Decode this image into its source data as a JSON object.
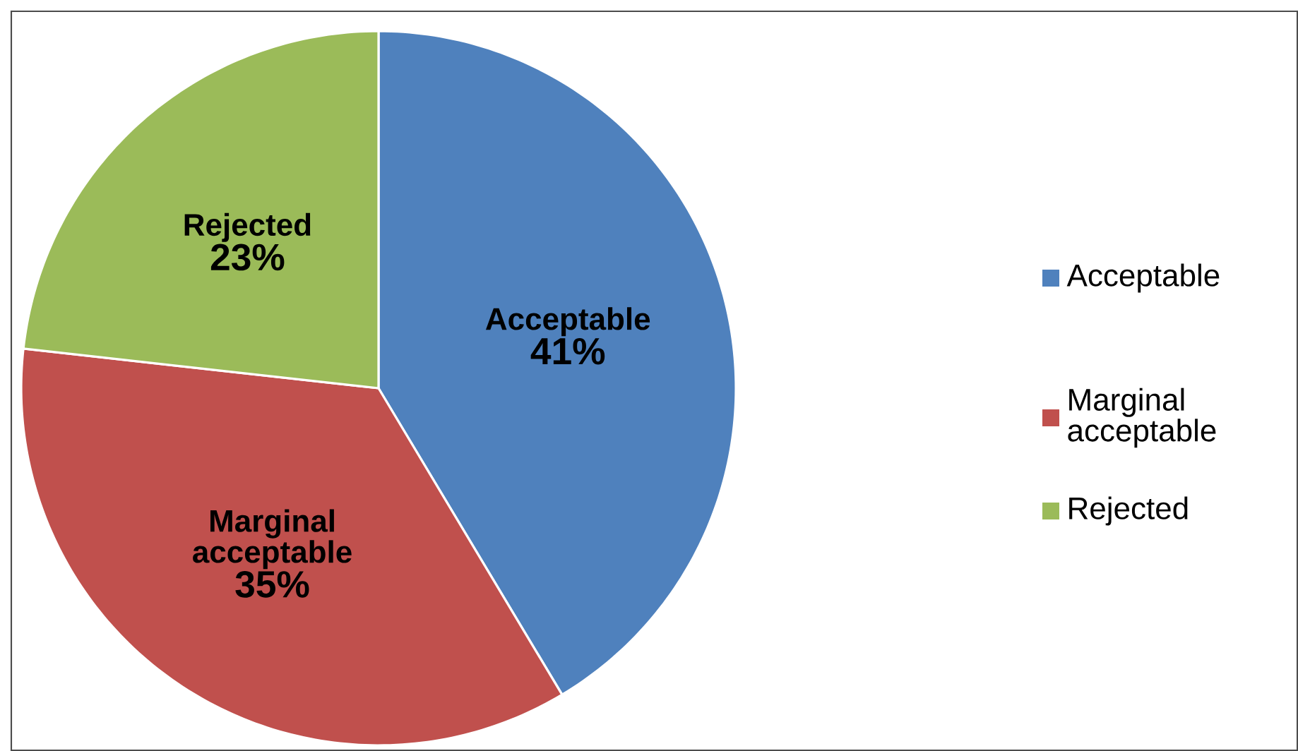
{
  "chart_data": {
    "type": "pie",
    "categories": [
      "Acceptable",
      "Marginal acceptable",
      "Rejected"
    ],
    "values": [
      41,
      35,
      23
    ],
    "value_labels": [
      "41%",
      "35%",
      "23%"
    ],
    "colors": [
      "#4f81bd",
      "#c0504d",
      "#9bbb59"
    ],
    "legend": "right"
  }
}
